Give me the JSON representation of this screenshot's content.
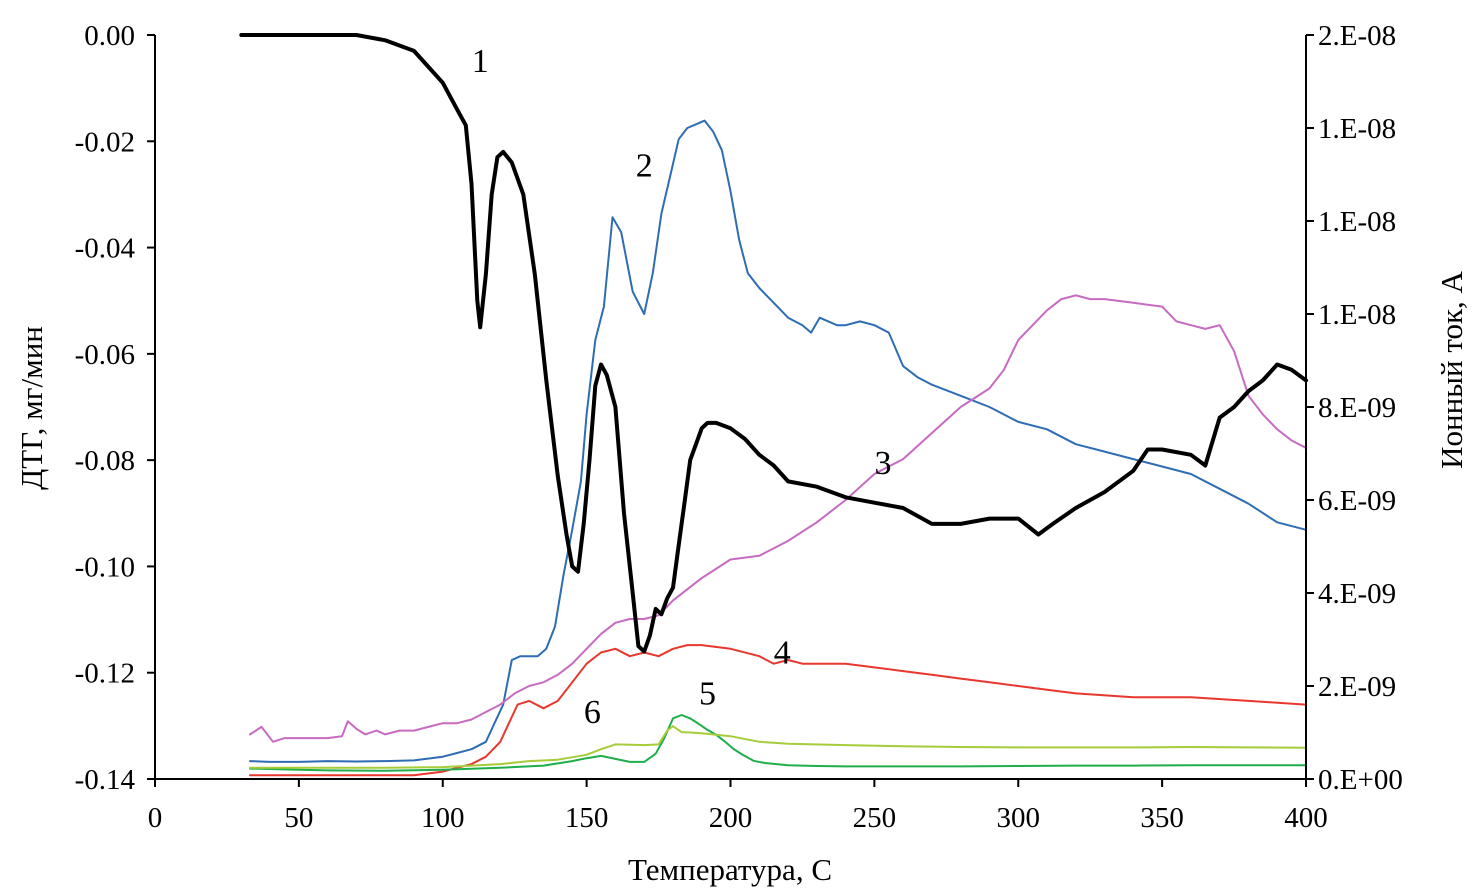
{
  "chart_data": {
    "type": "line",
    "xlabel": "Температура, С",
    "ylabel_left": "ДТГ, мг/мин",
    "ylabel_right": "Ионный ток, А",
    "xlim": [
      0,
      400
    ],
    "ylim_left": [
      -0.14,
      0.0
    ],
    "ylim_right": [
      0,
      2e-08
    ],
    "grid": false,
    "x_ticks": [
      "0",
      "50",
      "100",
      "150",
      "200",
      "250",
      "300",
      "350",
      "400"
    ],
    "y_left_ticks": [
      "0.00",
      "-0.02",
      "-0.04",
      "-0.06",
      "-0.08",
      "-0.10",
      "-0.12",
      "-0.14"
    ],
    "y_right_ticks": [
      "2.E-08",
      "1.E-08",
      "1.E-08",
      "1.E-08",
      "8.E-09",
      "6.E-09",
      "4.E-09",
      "2.E-09",
      "0.E+00"
    ],
    "series": [
      {
        "label": "1",
        "axis": "left",
        "color": "#000000",
        "width": 4,
        "label_pos": [
          113,
          -0.007
        ],
        "x": [
          30,
          45,
          60,
          70,
          80,
          90,
          95,
          100,
          105,
          108,
          110,
          112,
          113,
          115,
          117,
          119,
          121,
          124,
          128,
          132,
          136,
          140,
          143,
          145,
          147,
          149,
          151,
          153,
          155,
          157,
          160,
          163,
          166,
          168,
          170,
          172,
          174,
          176,
          178,
          180,
          182,
          184,
          186,
          188,
          190,
          192,
          195,
          200,
          205,
          210,
          215,
          220,
          230,
          240,
          250,
          260,
          270,
          280,
          290,
          300,
          307,
          312,
          320,
          330,
          340,
          345,
          350,
          360,
          365,
          370,
          375,
          380,
          385,
          390,
          395,
          400
        ],
        "y": [
          0.0,
          0.0,
          0.0,
          0.0,
          -0.001,
          -0.003,
          -0.006,
          -0.009,
          -0.014,
          -0.017,
          -0.028,
          -0.05,
          -0.055,
          -0.045,
          -0.03,
          -0.023,
          -0.022,
          -0.024,
          -0.03,
          -0.045,
          -0.065,
          -0.083,
          -0.094,
          -0.1,
          -0.101,
          -0.092,
          -0.08,
          -0.066,
          -0.062,
          -0.064,
          -0.07,
          -0.09,
          -0.105,
          -0.115,
          -0.116,
          -0.113,
          -0.108,
          -0.109,
          -0.106,
          -0.104,
          -0.096,
          -0.088,
          -0.08,
          -0.077,
          -0.074,
          -0.073,
          -0.073,
          -0.074,
          -0.076,
          -0.079,
          -0.081,
          -0.084,
          -0.085,
          -0.087,
          -0.088,
          -0.089,
          -0.092,
          -0.092,
          -0.091,
          -0.091,
          -0.094,
          -0.092,
          -0.089,
          -0.086,
          -0.082,
          -0.078,
          -0.078,
          -0.079,
          -0.081,
          -0.072,
          -0.07,
          -0.067,
          -0.065,
          -0.062,
          -0.063,
          -0.065
        ]
      },
      {
        "label": "2",
        "axis": "right",
        "color": "#2E6DB4",
        "width": 2,
        "label_pos": [
          170,
          1.62e-08
        ],
        "x": [
          33,
          40,
          50,
          60,
          70,
          80,
          90,
          100,
          105,
          110,
          115,
          118,
          121,
          124,
          127,
          130,
          133,
          136,
          139,
          142,
          145,
          148,
          150,
          153,
          156,
          159,
          162,
          166,
          170,
          173,
          176,
          179,
          182,
          185,
          188,
          191,
          194,
          197,
          200,
          203,
          206,
          210,
          215,
          220,
          225,
          228,
          231,
          234,
          237,
          240,
          245,
          250,
          255,
          260,
          265,
          270,
          280,
          290,
          300,
          310,
          320,
          330,
          340,
          350,
          360,
          370,
          380,
          390,
          400
        ],
        "y": [
          4.8e-10,
          4.6e-10,
          4.6e-10,
          4.8e-10,
          4.7e-10,
          4.8e-10,
          5e-10,
          6e-10,
          7e-10,
          8e-10,
          1e-09,
          1.5e-09,
          2e-09,
          3.2e-09,
          3.3e-09,
          3.3e-09,
          3.3e-09,
          3.5e-09,
          4.1e-09,
          5.5e-09,
          6.7e-09,
          8e-09,
          9.8e-09,
          1.18e-08,
          1.27e-08,
          1.51e-08,
          1.47e-08,
          1.31e-08,
          1.25e-08,
          1.36e-08,
          1.52e-08,
          1.62e-08,
          1.72e-08,
          1.75e-08,
          1.76e-08,
          1.77e-08,
          1.74e-08,
          1.69e-08,
          1.58e-08,
          1.45e-08,
          1.36e-08,
          1.32e-08,
          1.28e-08,
          1.24e-08,
          1.22e-08,
          1.2e-08,
          1.24e-08,
          1.23e-08,
          1.22e-08,
          1.22e-08,
          1.23e-08,
          1.22e-08,
          1.2e-08,
          1.11e-08,
          1.08e-08,
          1.06e-08,
          1.03e-08,
          1e-08,
          9.6e-09,
          9.4e-09,
          9e-09,
          8.8e-09,
          8.6e-09,
          8.4e-09,
          8.2e-09,
          7.8e-09,
          7.4e-09,
          6.9e-09,
          6.7e-09
        ]
      },
      {
        "label": "3",
        "axis": "right",
        "color": "#C76BC2",
        "width": 2,
        "label_pos": [
          253,
          8.2e-09
        ],
        "x": [
          33,
          37,
          41,
          45,
          50,
          55,
          60,
          65,
          67,
          70,
          73,
          77,
          80,
          85,
          90,
          95,
          100,
          105,
          110,
          115,
          120,
          125,
          130,
          135,
          140,
          145,
          150,
          155,
          160,
          165,
          170,
          175,
          180,
          190,
          200,
          210,
          220,
          230,
          240,
          250,
          260,
          270,
          280,
          290,
          295,
          300,
          305,
          310,
          315,
          320,
          325,
          330,
          340,
          350,
          355,
          360,
          365,
          370,
          375,
          380,
          385,
          390,
          395,
          400
        ],
        "y": [
          1.2e-09,
          1.4e-09,
          1e-09,
          1.1e-09,
          1.1e-09,
          1.1e-09,
          1.1e-09,
          1.15e-09,
          1.55e-09,
          1.35e-09,
          1.2e-09,
          1.3e-09,
          1.2e-09,
          1.3e-09,
          1.3e-09,
          1.4e-09,
          1.5e-09,
          1.5e-09,
          1.6e-09,
          1.8e-09,
          2e-09,
          2.3e-09,
          2.5e-09,
          2.6e-09,
          2.8e-09,
          3.1e-09,
          3.5e-09,
          3.9e-09,
          4.2e-09,
          4.3e-09,
          4.3e-09,
          4.4e-09,
          4.8e-09,
          5.4e-09,
          5.9e-09,
          6e-09,
          6.4e-09,
          6.9e-09,
          7.5e-09,
          8.2e-09,
          8.6e-09,
          9.3e-09,
          1e-08,
          1.05e-08,
          1.1e-08,
          1.18e-08,
          1.22e-08,
          1.26e-08,
          1.29e-08,
          1.3e-08,
          1.29e-08,
          1.29e-08,
          1.28e-08,
          1.27e-08,
          1.23e-08,
          1.22e-08,
          1.21e-08,
          1.22e-08,
          1.15e-08,
          1.03e-08,
          9.8e-09,
          9.4e-09,
          9.1e-09,
          8.9e-09
        ]
      },
      {
        "label": "4",
        "axis": "right",
        "color": "#E8372E",
        "width": 2,
        "label_pos": [
          218,
          3.1e-09
        ],
        "x": [
          33,
          40,
          50,
          60,
          70,
          80,
          90,
          100,
          105,
          110,
          115,
          120,
          123,
          126,
          130,
          135,
          140,
          145,
          150,
          155,
          160,
          165,
          170,
          175,
          180,
          185,
          190,
          200,
          210,
          215,
          220,
          225,
          230,
          240,
          250,
          260,
          270,
          280,
          290,
          300,
          310,
          320,
          340,
          360,
          380,
          400
        ],
        "y": [
          1e-10,
          1e-10,
          1e-10,
          1e-10,
          1e-10,
          1e-10,
          1e-10,
          2e-10,
          3e-10,
          4e-10,
          6e-10,
          1e-09,
          1.5e-09,
          2e-09,
          2.1e-09,
          1.9e-09,
          2.1e-09,
          2.6e-09,
          3.1e-09,
          3.4e-09,
          3.5e-09,
          3.3e-09,
          3.4e-09,
          3.3e-09,
          3.5e-09,
          3.6e-09,
          3.6e-09,
          3.5e-09,
          3.3e-09,
          3.1e-09,
          3.2e-09,
          3.1e-09,
          3.1e-09,
          3.1e-09,
          3e-09,
          2.9e-09,
          2.8e-09,
          2.7e-09,
          2.6e-09,
          2.5e-09,
          2.4e-09,
          2.3e-09,
          2.2e-09,
          2.2e-09,
          2.1e-09,
          2e-09
        ]
      },
      {
        "label": "5",
        "axis": "right",
        "color": "#1FAE4B",
        "width": 2,
        "label_pos": [
          192,
          2e-09
        ],
        "x": [
          33,
          40,
          50,
          60,
          80,
          100,
          120,
          135,
          145,
          150,
          155,
          160,
          165,
          170,
          174,
          177,
          180,
          183,
          186,
          189,
          192,
          195,
          198,
          201,
          204,
          208,
          212,
          220,
          230,
          240,
          260,
          280,
          300,
          320,
          340,
          360,
          380,
          400
        ],
        "y": [
          2.8e-10,
          2.7e-10,
          2.5e-10,
          2.3e-10,
          2.2e-10,
          2.5e-10,
          3e-10,
          3.6e-10,
          4.8e-10,
          5.6e-10,
          6.2e-10,
          5.4e-10,
          4.6e-10,
          4.6e-10,
          6.8e-10,
          1.1e-09,
          1.63e-09,
          1.72e-09,
          1.63e-09,
          1.48e-09,
          1.32e-09,
          1.19e-09,
          1.01e-09,
          8.1e-10,
          6.6e-10,
          4.9e-10,
          4.3e-10,
          3.7e-10,
          3.5e-10,
          3.4e-10,
          3.4e-10,
          3.4e-10,
          3.5e-10,
          3.6e-10,
          3.6e-10,
          3.7e-10,
          3.7e-10,
          3.7e-10
        ]
      },
      {
        "label": "6",
        "axis": "right",
        "color": "#A6CC3A",
        "width": 2,
        "label_pos": [
          152,
          1.5e-09
        ],
        "x": [
          33,
          50,
          80,
          100,
          120,
          130,
          140,
          150,
          155,
          160,
          165,
          170,
          175,
          178,
          180,
          183,
          186,
          190,
          200,
          210,
          220,
          240,
          260,
          280,
          300,
          320,
          340,
          360,
          380,
          400
        ],
        "y": [
          3e-10,
          3e-10,
          3e-10,
          3.2e-10,
          4e-10,
          4.8e-10,
          5.2e-10,
          6.5e-10,
          8e-10,
          9.3e-10,
          9.2e-10,
          9.1e-10,
          9.3e-10,
          1.3e-09,
          1.42e-09,
          1.26e-09,
          1.25e-09,
          1.23e-09,
          1.15e-09,
          1e-09,
          9.5e-10,
          9.1e-10,
          8.8e-10,
          8.6e-10,
          8.5e-10,
          8.5e-10,
          8.5e-10,
          8.6e-10,
          8.5e-10,
          8.4e-10
        ]
      }
    ]
  }
}
